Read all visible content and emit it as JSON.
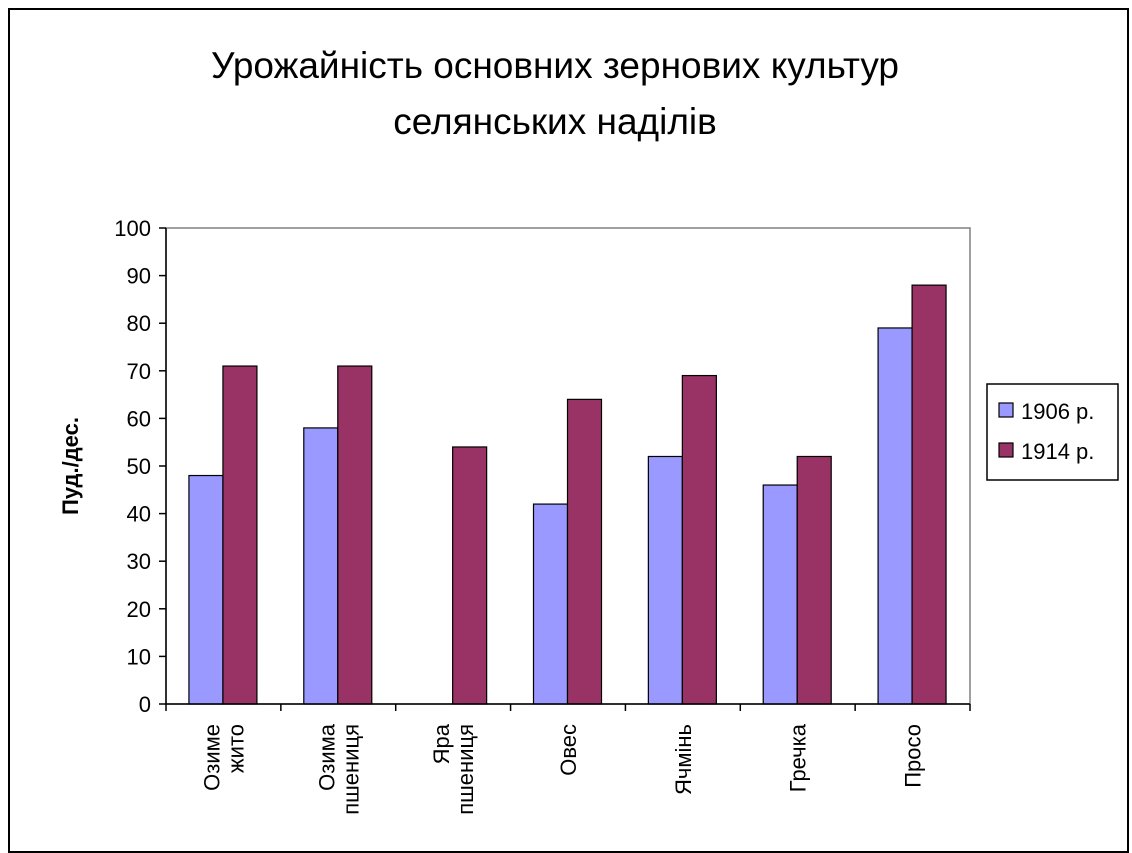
{
  "chart_data": {
    "type": "bar",
    "title_lines": [
      "Урожайність основних зернових культур",
      "селянських наділів"
    ],
    "ylabel": "Пуд./дес.",
    "xlabel": "",
    "ylim": [
      0,
      100
    ],
    "yticks": [
      0,
      10,
      20,
      30,
      40,
      50,
      60,
      70,
      80,
      90,
      100
    ],
    "categories": [
      [
        "Озиме",
        "жито"
      ],
      [
        "Озима",
        "пшениця"
      ],
      [
        "Яра",
        "пшениця"
      ],
      [
        "Овес"
      ],
      [
        "Ячмінь"
      ],
      [
        "Гречка"
      ],
      [
        "Просо"
      ]
    ],
    "series": [
      {
        "name": "1906 р.",
        "color": "#9999ff",
        "values": [
          48,
          58,
          null,
          42,
          52,
          46,
          79
        ]
      },
      {
        "name": "1914 р.",
        "color": "#993366",
        "values": [
          71,
          71,
          54,
          64,
          69,
          52,
          88
        ]
      }
    ],
    "legend_position": "right",
    "grid": false,
    "plot_border_color": "#808080"
  }
}
